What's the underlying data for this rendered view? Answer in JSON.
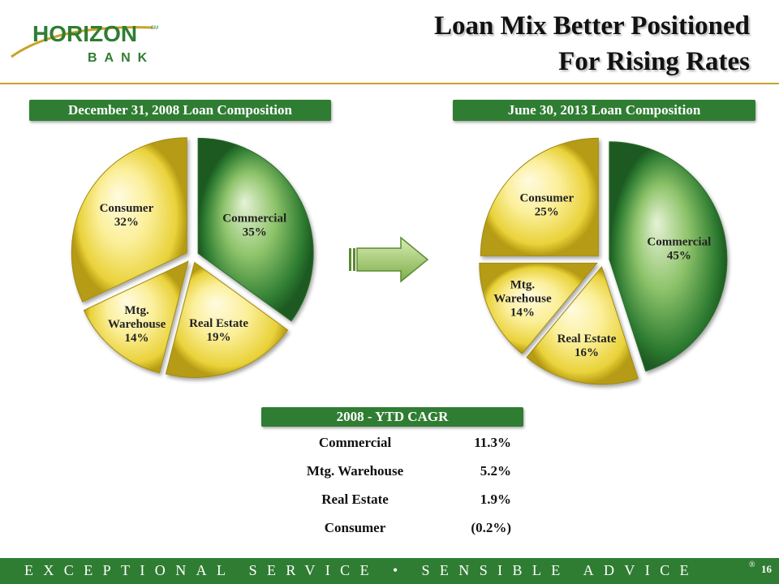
{
  "logo": {
    "name": "HORIZON",
    "mark": "SM",
    "sub": "BANK"
  },
  "slide": {
    "title_line1": "Loan Mix Better Positioned",
    "title_line2": "For Rising Rates",
    "page_number": "16"
  },
  "footer": {
    "tagline": "EXCEPTIONAL SERVICE • SENSIBLE ADVICE",
    "reg_mark": "®"
  },
  "colors": {
    "green": "#2f7d32",
    "yellow": "#e9d23a",
    "gold_rule": "#c9a227"
  },
  "chart_data": [
    {
      "type": "pie",
      "title": "December 31, 2008 Loan Composition",
      "slices": [
        {
          "label": "Commercial",
          "value": 35,
          "display": "35%",
          "color": "green"
        },
        {
          "label": "Real Estate",
          "value": 19,
          "display": "19%",
          "color": "yellow"
        },
        {
          "label": "Mtg. Warehouse",
          "value": 14,
          "display": "14%",
          "color": "yellow"
        },
        {
          "label": "Consumer",
          "value": 32,
          "display": "32%",
          "color": "yellow"
        }
      ]
    },
    {
      "type": "pie",
      "title": "June 30, 2013 Loan Composition",
      "slices": [
        {
          "label": "Commercial",
          "value": 45,
          "display": "45%",
          "color": "green"
        },
        {
          "label": "Real Estate",
          "value": 16,
          "display": "16%",
          "color": "yellow"
        },
        {
          "label": "Mtg. Warehouse",
          "value": 14,
          "display": "14%",
          "color": "yellow"
        },
        {
          "label": "Consumer",
          "value": 25,
          "display": "25%",
          "color": "yellow"
        }
      ]
    },
    {
      "type": "table",
      "title": "2008 - YTD CAGR",
      "rows": [
        {
          "category": "Commercial",
          "value": "11.3%"
        },
        {
          "category": "Mtg. Warehouse",
          "value": "5.2%"
        },
        {
          "category": "Real Estate",
          "value": "1.9%"
        },
        {
          "category": "Consumer",
          "value": "(0.2%)"
        }
      ]
    }
  ]
}
